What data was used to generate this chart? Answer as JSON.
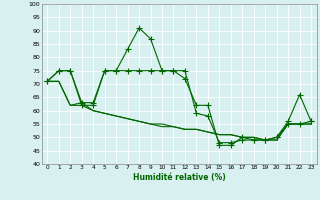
{
  "xlabel": "Humidité relative (%)",
  "bg_color": "#d8f0f0",
  "grid_color": "#ffffff",
  "line_color": "#006600",
  "xlim": [
    -0.5,
    23.5
  ],
  "ylim": [
    40,
    100
  ],
  "yticks": [
    40,
    45,
    50,
    55,
    60,
    65,
    70,
    75,
    80,
    85,
    90,
    95,
    100
  ],
  "xticks": [
    0,
    1,
    2,
    3,
    4,
    5,
    6,
    7,
    8,
    9,
    10,
    11,
    12,
    13,
    14,
    15,
    16,
    17,
    18,
    19,
    20,
    21,
    22,
    23
  ],
  "line1_x": [
    0,
    1,
    2,
    3,
    4,
    5,
    6,
    7,
    8,
    9,
    10,
    11,
    12,
    13,
    14,
    15,
    16,
    17,
    18,
    19,
    20,
    21,
    22,
    23
  ],
  "line1_y": [
    71,
    75,
    75,
    63,
    63,
    75,
    75,
    83,
    91,
    87,
    75,
    75,
    72,
    62,
    62,
    47,
    47,
    50,
    49,
    49,
    50,
    56,
    66,
    56
  ],
  "line2_x": [
    0,
    1,
    2,
    3,
    4,
    5,
    6,
    7,
    8,
    9,
    10,
    11,
    12,
    13,
    14,
    15,
    16,
    17,
    18,
    19,
    20,
    21,
    22,
    23
  ],
  "line2_y": [
    71,
    75,
    75,
    62,
    62,
    75,
    75,
    75,
    75,
    75,
    75,
    75,
    75,
    59,
    58,
    48,
    48,
    49,
    49,
    49,
    50,
    55,
    55,
    56
  ],
  "line3_x": [
    0,
    1,
    2,
    3,
    4,
    5,
    6,
    7,
    8,
    9,
    10,
    11,
    12,
    13,
    14,
    15,
    16,
    17,
    18,
    19,
    20,
    21,
    22,
    23
  ],
  "line3_y": [
    71,
    71,
    62,
    62,
    60,
    59,
    58,
    57,
    56,
    55,
    54,
    54,
    53,
    53,
    52,
    51,
    51,
    50,
    50,
    49,
    49,
    55,
    55,
    55
  ],
  "line4_x": [
    0,
    1,
    2,
    3,
    4,
    5,
    6,
    7,
    8,
    9,
    10,
    11,
    12,
    13,
    14,
    15,
    16,
    17,
    18,
    19,
    20,
    21,
    22,
    23
  ],
  "line4_y": [
    71,
    71,
    62,
    63,
    60,
    59,
    58,
    57,
    56,
    55,
    55,
    54,
    53,
    53,
    52,
    51,
    51,
    50,
    50,
    49,
    49,
    55,
    55,
    55
  ]
}
